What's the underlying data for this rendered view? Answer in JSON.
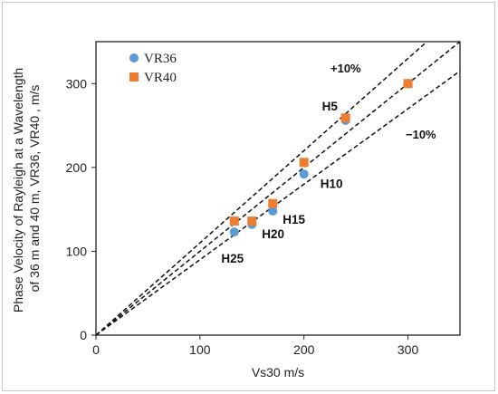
{
  "chart_data": {
    "type": "scatter",
    "title": "",
    "xlabel": "Vs30 m/s",
    "ylabel_lines": [
      "Phase Velocity of Rayleigh  at a Wavelength",
      "of 36 m and 40 m, VR36, VR40 , m/s"
    ],
    "xlim": [
      0,
      350
    ],
    "ylim": [
      0,
      350
    ],
    "x_ticks": [
      0,
      100,
      200,
      300
    ],
    "y_ticks": [
      0,
      100,
      200,
      300
    ],
    "grid": false,
    "legend_position": "top-left",
    "series": [
      {
        "name": "VR36",
        "marker": "circle",
        "color": "#5b9bd5",
        "points": [
          {
            "x": 133,
            "y": 123
          },
          {
            "x": 150,
            "y": 132
          },
          {
            "x": 170,
            "y": 148
          },
          {
            "x": 200,
            "y": 192
          },
          {
            "x": 240,
            "y": 256
          },
          {
            "x": 300,
            "y": 300
          }
        ]
      },
      {
        "name": "VR40",
        "marker": "square",
        "color": "#ed7d31",
        "points": [
          {
            "x": 133,
            "y": 136
          },
          {
            "x": 150,
            "y": 136
          },
          {
            "x": 170,
            "y": 157
          },
          {
            "x": 200,
            "y": 206
          },
          {
            "x": 240,
            "y": 259
          },
          {
            "x": 300,
            "y": 300
          }
        ]
      }
    ],
    "reference_lines": [
      {
        "label": "+10%",
        "slope": 1.1
      },
      {
        "label": "",
        "slope": 1.0
      },
      {
        "label": "−10%",
        "slope": 0.9
      }
    ],
    "point_labels": [
      {
        "text": "H25",
        "x": 133,
        "y": 123
      },
      {
        "text": "H20",
        "x": 150,
        "y": 132
      },
      {
        "text": "H15",
        "x": 170,
        "y": 148
      },
      {
        "text": "H10",
        "x": 200,
        "y": 192
      },
      {
        "text": "H5",
        "x": 240,
        "y": 259
      }
    ]
  }
}
